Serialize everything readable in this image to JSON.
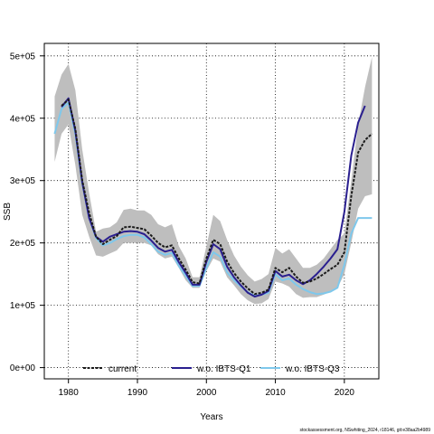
{
  "chart_data": {
    "type": "line",
    "xlabel": "Years",
    "ylabel": "SSB",
    "xlim": [
      1976.5,
      2025
    ],
    "ylim": [
      -18000,
      520000
    ],
    "x_ticks": [
      1980,
      1990,
      2000,
      2010,
      2020
    ],
    "y_ticks": [
      0,
      100000,
      200000,
      300000,
      400000,
      500000
    ],
    "y_tick_labels": [
      "0e+00",
      "1e+05",
      "2e+05",
      "3e+05",
      "4e+05",
      "5e+05"
    ],
    "grid": true,
    "legend_position": "bottom",
    "x": [
      1978,
      1979,
      1980,
      1981,
      1982,
      1983,
      1984,
      1985,
      1986,
      1987,
      1988,
      1989,
      1990,
      1991,
      1992,
      1993,
      1994,
      1995,
      1996,
      1997,
      1998,
      1999,
      2000,
      2001,
      2002,
      2003,
      2004,
      2005,
      2006,
      2007,
      2008,
      2009,
      2010,
      2011,
      2012,
      2013,
      2014,
      2015,
      2016,
      2017,
      2018,
      2019,
      2020,
      2021,
      2022,
      2023,
      2024
    ],
    "band": {
      "color": "#bebebe",
      "upper": [
        435000,
        470000,
        487000,
        445000,
        350000,
        280000,
        218000,
        223000,
        225000,
        233000,
        253000,
        255000,
        252000,
        252000,
        245000,
        230000,
        225000,
        230000,
        195000,
        175000,
        145000,
        145000,
        195000,
        245000,
        235000,
        205000,
        180000,
        162000,
        148000,
        138000,
        142000,
        150000,
        192000,
        183000,
        190000,
        175000,
        160000,
        160000,
        165000,
        175000,
        190000,
        205000,
        215000,
        300000,
        390000,
        450000,
        498000
      ],
      "lower": [
        330000,
        375000,
        390000,
        325000,
        245000,
        210000,
        180000,
        178000,
        183000,
        188000,
        200000,
        200000,
        200000,
        200000,
        196000,
        182000,
        175000,
        178000,
        160000,
        140000,
        128000,
        128000,
        155000,
        175000,
        170000,
        145000,
        132000,
        118000,
        108000,
        102000,
        103000,
        110000,
        138000,
        135000,
        130000,
        118000,
        112000,
        113000,
        113000,
        117000,
        122000,
        128000,
        150000,
        200000,
        255000,
        275000,
        278000
      ]
    },
    "series": [
      {
        "name": "current",
        "color": "#1a1a1a",
        "dashed": true,
        "values": [
          null,
          420000,
          430000,
          383000,
          300000,
          248000,
          210000,
          198000,
          205000,
          211000,
          225000,
          226000,
          224000,
          222000,
          212000,
          200000,
          193000,
          196000,
          175000,
          157000,
          137000,
          135000,
          175000,
          205000,
          198000,
          170000,
          152000,
          138000,
          127000,
          118000,
          120000,
          125000,
          160000,
          153000,
          160000,
          146000,
          136000,
          138000,
          143000,
          150000,
          158000,
          165000,
          185000,
          275000,
          345000,
          365000,
          375000
        ]
      },
      {
        "name": "w.o. IBTS-Q1",
        "color": "#2a1f8f",
        "dashed": false,
        "values": [
          null,
          418000,
          432000,
          380000,
          297000,
          240000,
          210000,
          202000,
          210000,
          214000,
          218000,
          219000,
          218000,
          214000,
          204000,
          192000,
          186000,
          189000,
          169000,
          152000,
          133000,
          133000,
          170000,
          198000,
          190000,
          162000,
          145000,
          132000,
          120000,
          114000,
          117000,
          123000,
          155000,
          146000,
          149000,
          140000,
          134000,
          140000,
          150000,
          162000,
          175000,
          190000,
          250000,
          340000,
          393000,
          420000,
          null
        ]
      },
      {
        "name": "w.o. IBTS-Q3",
        "color": "#7ec8ec",
        "dashed": false,
        "values": [
          375000,
          415000,
          425000,
          375000,
          295000,
          240000,
          208000,
          196000,
          200000,
          206000,
          211000,
          213000,
          213000,
          209000,
          198000,
          186000,
          181000,
          184000,
          163000,
          147000,
          131000,
          131000,
          160000,
          185000,
          178000,
          153000,
          140000,
          130000,
          121000,
          115000,
          117000,
          120000,
          150000,
          140000,
          143000,
          133000,
          126000,
          121000,
          118000,
          119000,
          122000,
          128000,
          165000,
          215000,
          240000,
          240000,
          240000
        ]
      }
    ]
  },
  "footer": "stockassessment.org, NSwhiting_2024, r18146, git:e38aa2b4989"
}
